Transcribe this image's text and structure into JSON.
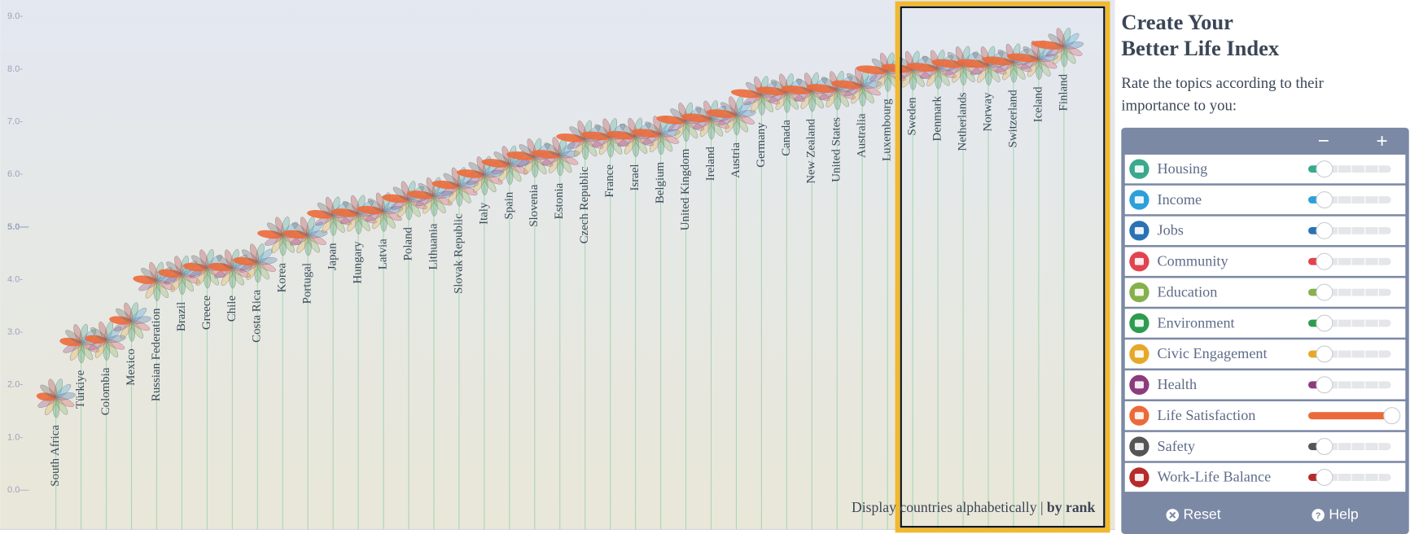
{
  "chart_data": {
    "type": "flower",
    "categories": [
      "South Africa",
      "Türkiye",
      "Colombia",
      "Mexico",
      "Russian Federation",
      "Brazil",
      "Greece",
      "Chile",
      "Costa Rica",
      "Korea",
      "Portugal",
      "Japan",
      "Hungary",
      "Latvia",
      "Poland",
      "Lithuania",
      "Slovak Republic",
      "Italy",
      "Spain",
      "Slovenia",
      "Estonia",
      "Czech Republic",
      "France",
      "Israel",
      "Belgium",
      "United Kingdom",
      "Ireland",
      "Austria",
      "Germany",
      "Canada",
      "New Zealand",
      "United States",
      "Australia",
      "Luxembourg",
      "Sweden",
      "Denmark",
      "Netherlands",
      "Norway",
      "Switzerland",
      "Iceland",
      "Finland"
    ],
    "values": [
      1.75,
      2.79,
      2.84,
      3.2,
      3.97,
      4.09,
      4.21,
      4.21,
      4.32,
      4.83,
      4.83,
      5.21,
      5.24,
      5.29,
      5.51,
      5.58,
      5.77,
      5.98,
      6.18,
      6.32,
      6.35,
      6.66,
      6.7,
      6.71,
      6.75,
      7.0,
      7.04,
      7.12,
      7.5,
      7.55,
      7.57,
      7.6,
      7.67,
      7.95,
      7.98,
      8.0,
      8.07,
      8.07,
      8.12,
      8.18,
      8.42
    ],
    "ylim": [
      -0.75,
      9.28
    ],
    "yticks": [
      {
        "value": 0,
        "label": "0.0—"
      },
      {
        "value": 1,
        "label": "1.0-"
      },
      {
        "value": 2,
        "label": "2.0-"
      },
      {
        "value": 3,
        "label": "3.0-"
      },
      {
        "value": 4,
        "label": "4.0-"
      },
      {
        "value": 5,
        "label": "5.0—"
      },
      {
        "value": 6,
        "label": "6.0-"
      },
      {
        "value": 7,
        "label": "7.0-"
      },
      {
        "value": 8,
        "label": "8.0-"
      },
      {
        "value": 9,
        "label": "9.0-"
      }
    ],
    "emphasized_tick": 5,
    "stem_color": "#a9d6b4"
  },
  "display_toggle": {
    "alphabetical": "Display countries alphabetically",
    "separator": "|",
    "by_rank": "by rank"
  },
  "panel": {
    "title_lines": [
      "Create Your",
      "Better Life Index"
    ],
    "subtitle_lines": [
      "Rate the topics according to their",
      "importance to you:"
    ],
    "minus": "−",
    "plus": "+",
    "weight_max": 5,
    "topics": [
      {
        "name": "Housing",
        "color": "#3aa98c",
        "weight": 0
      },
      {
        "name": "Income",
        "color": "#2d9fd9",
        "weight": 0
      },
      {
        "name": "Jobs",
        "color": "#2a72b4",
        "weight": 0
      },
      {
        "name": "Community",
        "color": "#e2434f",
        "weight": 0
      },
      {
        "name": "Education",
        "color": "#86b04a",
        "weight": 0
      },
      {
        "name": "Environment",
        "color": "#2e9b4f",
        "weight": 0
      },
      {
        "name": "Civic Engagement",
        "color": "#e6a82a",
        "weight": 0
      },
      {
        "name": "Health",
        "color": "#8c3b7c",
        "weight": 0
      },
      {
        "name": "Life Satisfaction",
        "color": "#ec6a3a",
        "weight": 5
      },
      {
        "name": "Safety",
        "color": "#555555",
        "weight": 0
      },
      {
        "name": "Work-Life Balance",
        "color": "#b52b2b",
        "weight": 0
      }
    ],
    "reset": "Reset",
    "help": "Help"
  }
}
